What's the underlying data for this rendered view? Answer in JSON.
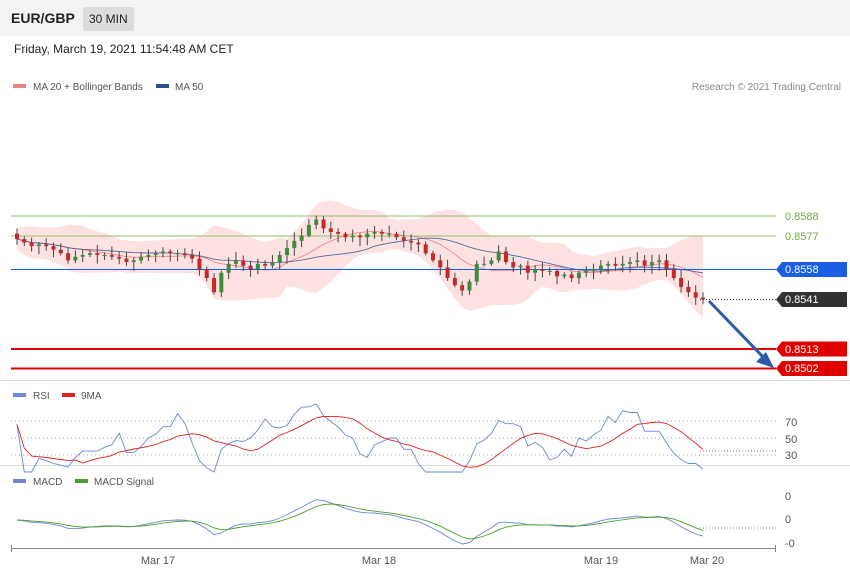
{
  "header": {
    "symbol": "EUR/GBP",
    "timeframe": "30 MIN"
  },
  "datetime": "Friday, March 19, 2021 11:54:48 AM CET",
  "legend": {
    "ma20": "MA 20 + Bollinger Bands",
    "ma50": "MA 50",
    "ma20_color": "#f08080",
    "ma50_color": "#2b4f8e"
  },
  "copyright": "Research © 2021 Trading Central",
  "levels": [
    {
      "label": "0.8588",
      "value": 0.8588,
      "color": "#6aaa3a",
      "style": "green-line"
    },
    {
      "label": "0.8577",
      "value": 0.8577,
      "color": "#6aaa3a",
      "style": "green-line"
    },
    {
      "label": "0.8558",
      "value": 0.8558,
      "color": "#1a5ee6",
      "style": "blue-badge"
    },
    {
      "label": "0.8541",
      "value": 0.8541,
      "color": "#333333",
      "style": "dark-badge"
    },
    {
      "label": "0.8513",
      "value": 0.8513,
      "color": "#e00000",
      "style": "red-badge"
    },
    {
      "label": "0.8502",
      "value": 0.8502,
      "color": "#e00000",
      "style": "red-badge"
    }
  ],
  "rsi_panel": {
    "legend_rsi": "RSI",
    "legend_9ma": "9MA",
    "rsi_color": "#6a87d8",
    "ma_color": "#e02020",
    "ticks": [
      "70",
      "50",
      "30"
    ]
  },
  "macd_panel": {
    "legend_macd": "MACD",
    "legend_signal": "MACD Signal",
    "macd_color": "#6a87d8",
    "signal_color": "#4aa02a",
    "ticks": [
      "0",
      "0",
      "-0"
    ]
  },
  "x_ticks": [
    "Mar 17",
    "Mar 18",
    "Mar 19",
    "Mar 20"
  ],
  "chart_data": {
    "type": "candlestick",
    "yaxis_unit": "price",
    "close_series_approx": [
      0.8575,
      0.8573,
      0.8571,
      0.8572,
      0.8571,
      0.8569,
      0.8567,
      0.8563,
      0.8565,
      0.8566,
      0.8567,
      0.8566,
      0.8566,
      0.8565,
      0.8564,
      0.8562,
      0.8563,
      0.8565,
      0.8566,
      0.8567,
      0.8568,
      0.8567,
      0.8567,
      0.8566,
      0.8564,
      0.8558,
      0.8553,
      0.8545,
      0.8556,
      0.8561,
      0.8563,
      0.856,
      0.8558,
      0.8561,
      0.856,
      0.8562,
      0.8566,
      0.857,
      0.8574,
      0.8577,
      0.8583,
      0.8586,
      0.8581,
      0.8579,
      0.8578,
      0.8576,
      0.8577,
      0.8576,
      0.8578,
      0.8579,
      0.8578,
      0.8578,
      0.8576,
      0.8574,
      0.8573,
      0.8572,
      0.8567,
      0.8563,
      0.8559,
      0.8553,
      0.8549,
      0.8546,
      0.8551,
      0.8561,
      0.8561,
      0.8563,
      0.8568,
      0.8562,
      0.8559,
      0.856,
      0.8556,
      0.8558,
      0.8557,
      0.8557,
      0.8554,
      0.8555,
      0.8553,
      0.8556,
      0.8557,
      0.8558,
      0.856,
      0.8561,
      0.856,
      0.8561,
      0.8562,
      0.8563,
      0.856,
      0.8562,
      0.8563,
      0.8558,
      0.8553,
      0.8548,
      0.8545,
      0.8542,
      0.8541
    ]
  }
}
